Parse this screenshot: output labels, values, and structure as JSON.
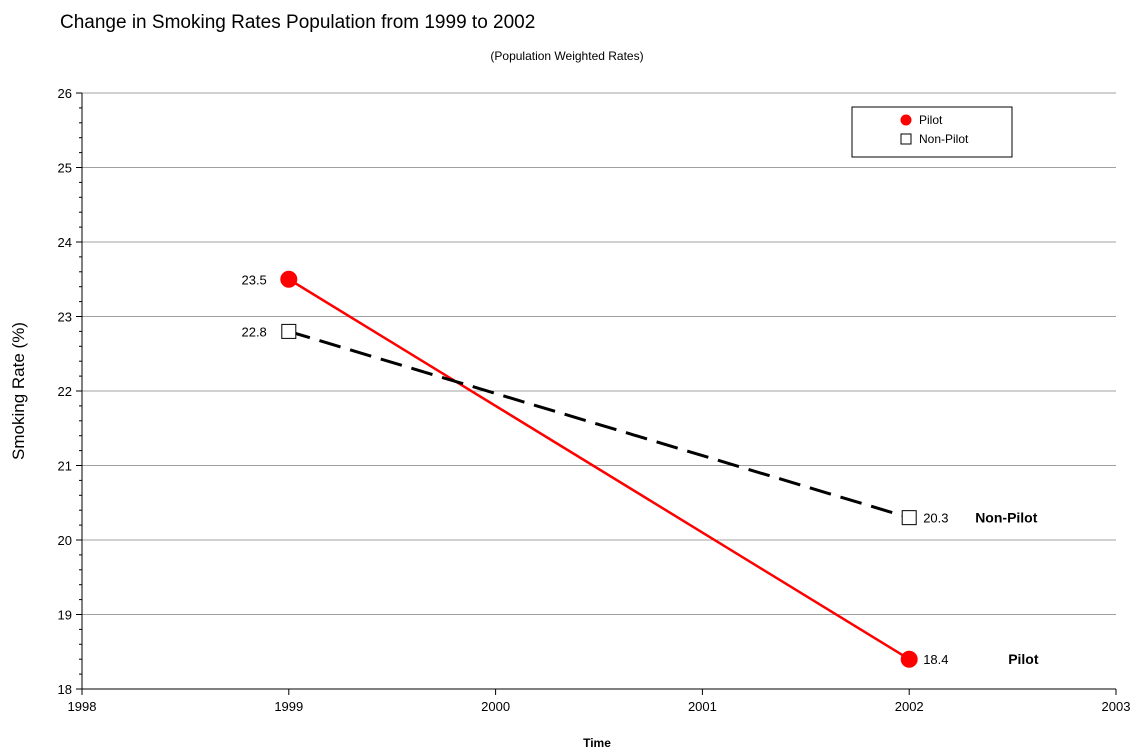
{
  "chart_data": {
    "type": "line",
    "title": "Change in Smoking Rates Population from 1999 to 2002",
    "subtitle": "(Population Weighted Rates)",
    "xlabel": "Time",
    "ylabel": "Smoking Rate (%)",
    "xlim": [
      1998,
      2003
    ],
    "ylim": [
      18,
      26
    ],
    "x_ticks": [
      1998,
      1999,
      2000,
      2001,
      2002,
      2003
    ],
    "y_ticks": [
      18,
      19,
      20,
      21,
      22,
      23,
      24,
      25,
      26
    ],
    "grid": "horizontal",
    "legend_position": "top-right",
    "series": [
      {
        "name": "Pilot",
        "color": "#ff0000",
        "line_style": "solid",
        "marker": "filled-circle",
        "end_label": "Pilot",
        "points": [
          {
            "x": 1999,
            "y": 23.5,
            "label": "23.5"
          },
          {
            "x": 2002,
            "y": 18.4,
            "label": "18.4"
          }
        ]
      },
      {
        "name": "Non-Pilot",
        "color": "#000000",
        "line_style": "dashed",
        "marker": "open-square",
        "end_label": "Non-Pilot",
        "points": [
          {
            "x": 1999,
            "y": 22.8,
            "label": "22.8"
          },
          {
            "x": 2002,
            "y": 20.3,
            "label": "20.3"
          }
        ]
      }
    ]
  }
}
